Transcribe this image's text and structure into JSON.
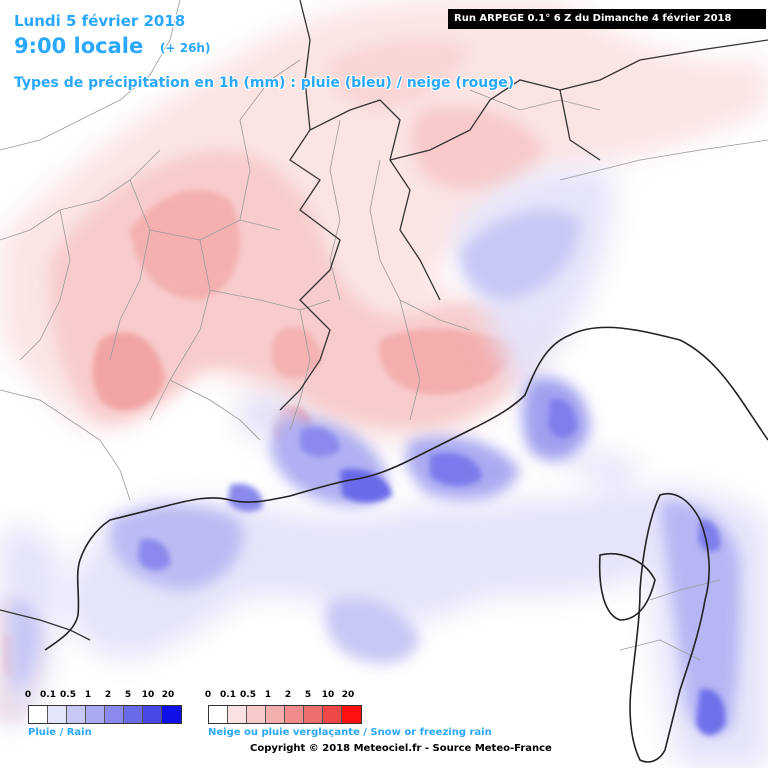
{
  "header": {
    "date": "Lundi 5 février 2018",
    "time": "9:00 locale",
    "lead": "(+ 26h)",
    "title": "Types de précipitation en 1h (mm) : pluie (bleu) / neige (rouge)",
    "run": "Run ARPEGE 0.1° 6 Z du Dimanche 4 février 2018"
  },
  "legend": {
    "thresholds": [
      "0",
      "0.1",
      "0.5",
      "1",
      "2",
      "5",
      "10",
      "20"
    ],
    "rain": {
      "label": "Pluie / Rain",
      "colors": [
        "#ffffff",
        "#e4e4fa",
        "#c8c8f6",
        "#aaaaf2",
        "#8a8aee",
        "#6a6aea",
        "#4848e4",
        "#1010e8"
      ]
    },
    "snow": {
      "label": "Neige ou pluie verglaçante / Snow or freezing rain",
      "colors": [
        "#ffffff",
        "#fbe2e2",
        "#f8caca",
        "#f4aeae",
        "#f08c8c",
        "#ec6e6e",
        "#ee4848",
        "#ff1010"
      ]
    }
  },
  "credit": "Copyright © 2018 Meteociel.fr - Source Meteo-France"
}
